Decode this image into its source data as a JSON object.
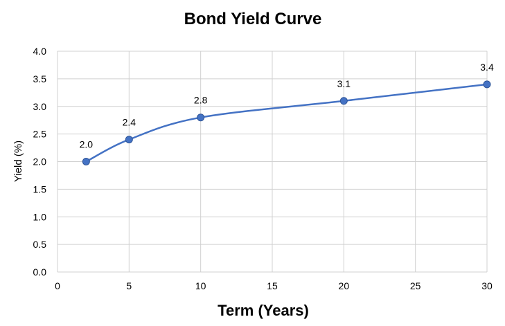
{
  "chart_data": {
    "type": "line",
    "title": "Bond Yield Curve",
    "xlabel": "Term (Years)",
    "ylabel": "Yield (%)",
    "xlim": [
      0,
      30
    ],
    "ylim": [
      0,
      4.0
    ],
    "x_ticks": [
      "0",
      "5",
      "10",
      "15",
      "20",
      "25",
      "30"
    ],
    "y_ticks": [
      "0.0",
      "0.5",
      "1.0",
      "1.5",
      "2.0",
      "2.5",
      "3.0",
      "3.5",
      "4.0"
    ],
    "grid": true,
    "smooth": true,
    "series": [
      {
        "x": [
          2,
          5,
          10,
          20,
          30
        ],
        "values": [
          2.0,
          2.4,
          2.8,
          3.1,
          3.4
        ],
        "data_labels": [
          "2.0",
          "2.4",
          "2.8",
          "3.1",
          "3.4"
        ],
        "color": "#4472c4"
      }
    ]
  }
}
